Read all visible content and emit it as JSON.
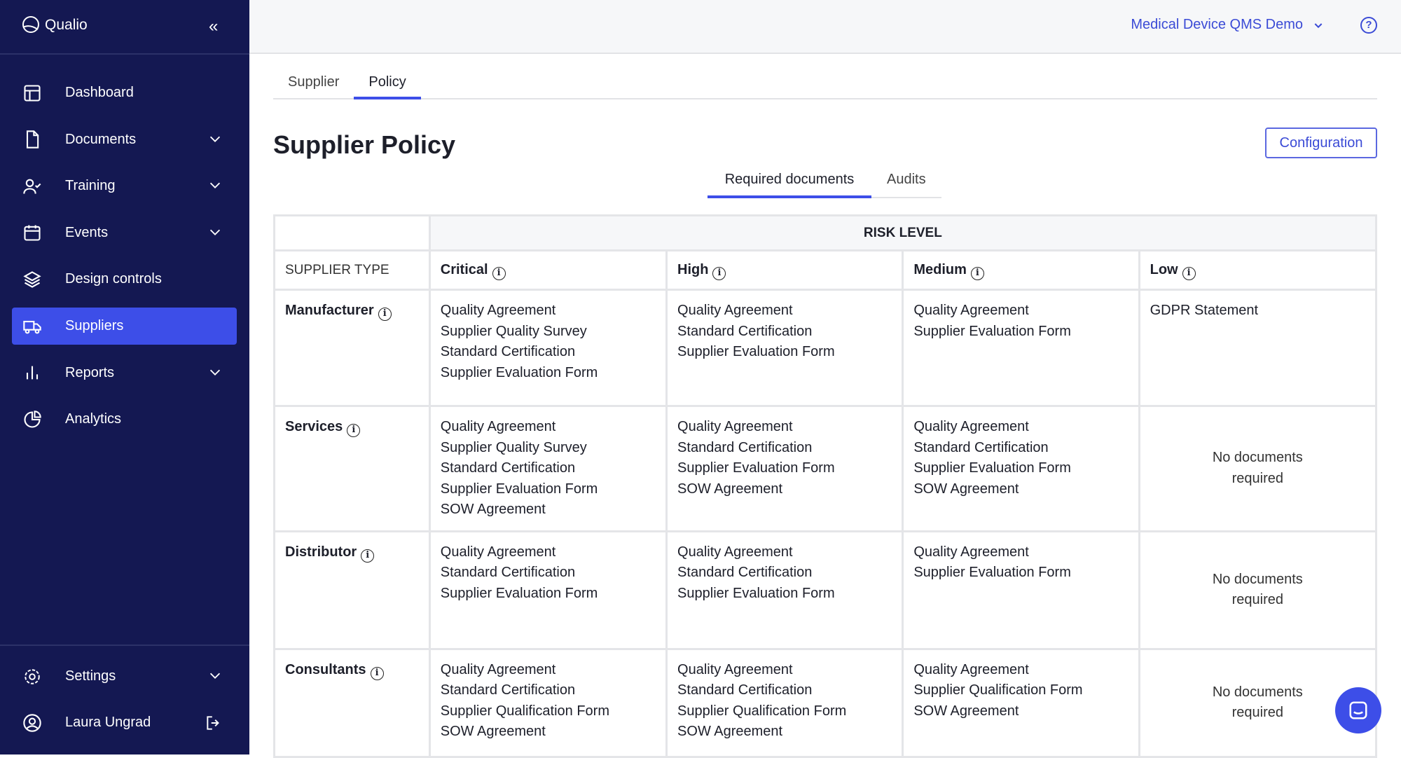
{
  "app": {
    "name": "Qualio"
  },
  "sidebar": {
    "items": [
      {
        "label": "Dashboard",
        "icon": "layout-icon",
        "expandable": false
      },
      {
        "label": "Documents",
        "icon": "document-icon",
        "expandable": true
      },
      {
        "label": "Training",
        "icon": "user-check-icon",
        "expandable": true
      },
      {
        "label": "Events",
        "icon": "calendar-icon",
        "expandable": true
      },
      {
        "label": "Design controls",
        "icon": "layers-icon",
        "expandable": false
      },
      {
        "label": "Suppliers",
        "icon": "truck-icon",
        "expandable": false,
        "active": true
      },
      {
        "label": "Reports",
        "icon": "bar-chart-icon",
        "expandable": true
      },
      {
        "label": "Analytics",
        "icon": "pie-chart-icon",
        "expandable": false
      }
    ],
    "settings": "Settings",
    "user": "Laura Ungrad"
  },
  "header": {
    "org": "Medical Device QMS Demo"
  },
  "tabs": [
    "Supplier",
    "Policy"
  ],
  "page": {
    "title": "Supplier Policy",
    "config_label": "Configuration",
    "subtabs": [
      "Required documents",
      "Audits"
    ]
  },
  "table": {
    "risk_level": "RISK LEVEL",
    "supplier_type": "SUPPLIER TYPE",
    "columns": [
      "Critical",
      "High",
      "Medium",
      "Low"
    ],
    "rows": [
      {
        "type": "Manufacturer",
        "cells": [
          [
            "Quality Agreement",
            "Supplier Quality Survey",
            "Standard Certification",
            "Supplier Evaluation Form"
          ],
          [
            "Quality Agreement",
            "Standard Certification",
            "Supplier Evaluation Form"
          ],
          [
            "Quality Agreement",
            "Supplier Evaluation Form"
          ],
          [
            "GDPR Statement"
          ]
        ]
      },
      {
        "type": "Services",
        "cells": [
          [
            "Quality Agreement",
            "Supplier Quality Survey",
            "Standard Certification",
            "Supplier Evaluation Form",
            "SOW Agreement"
          ],
          [
            "Quality Agreement",
            "Standard Certification",
            "Supplier Evaluation Form",
            "SOW Agreement"
          ],
          [
            "Quality Agreement",
            "Standard Certification",
            "Supplier Evaluation Form",
            "SOW Agreement"
          ],
          []
        ]
      },
      {
        "type": "Distributor",
        "cells": [
          [
            "Quality Agreement",
            "Standard Certification",
            "Supplier Evaluation Form"
          ],
          [
            "Quality Agreement",
            "Standard Certification",
            "Supplier Evaluation Form"
          ],
          [
            "Quality Agreement",
            "Supplier Evaluation Form"
          ],
          []
        ]
      },
      {
        "type": "Consultants",
        "cells": [
          [
            "Quality Agreement",
            "Standard Certification",
            "Supplier Qualification Form",
            "SOW Agreement"
          ],
          [
            "Quality Agreement",
            "Standard Certification",
            "Supplier Qualification Form",
            "SOW Agreement"
          ],
          [
            "Quality Agreement",
            "Supplier Qualification Form",
            "SOW Agreement"
          ],
          []
        ]
      }
    ],
    "empty_text": "No documents required"
  },
  "colors": {
    "sidebar": "#141852",
    "accent": "#3d4ee8",
    "link": "#3b4bd6"
  }
}
